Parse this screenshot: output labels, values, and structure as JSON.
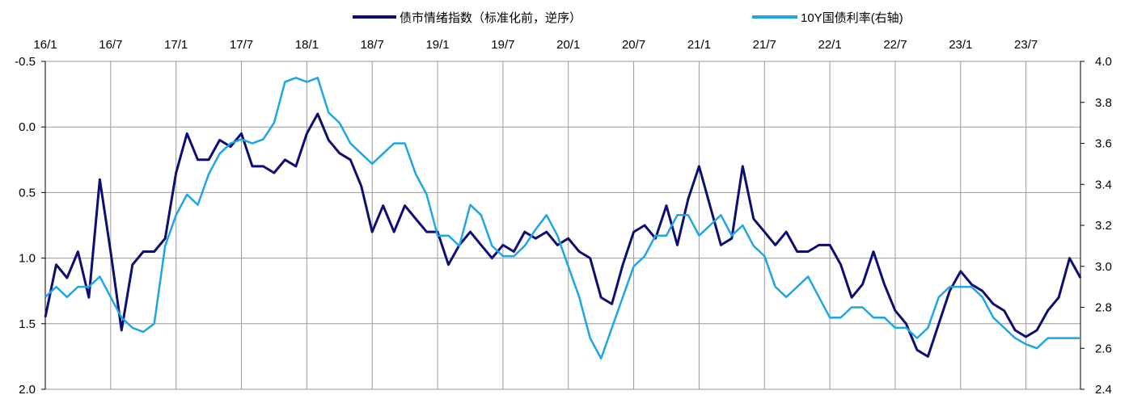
{
  "chart_data": {
    "type": "line",
    "title": "",
    "xlabel": "",
    "ylabel": "",
    "x_tick_labels": [
      "16/1",
      "16/7",
      "17/1",
      "17/7",
      "18/1",
      "18/7",
      "19/1",
      "19/7",
      "20/1",
      "20/7",
      "21/1",
      "21/7",
      "22/1",
      "22/7",
      "23/1",
      "23/7"
    ],
    "x_range": [
      "2016-01",
      "2023-12"
    ],
    "y_left": {
      "lim": [
        -0.5,
        2.0
      ],
      "reversed": true,
      "ticks": [
        "-0.5",
        "0.0",
        "0.5",
        "1.0",
        "1.5",
        "2.0"
      ]
    },
    "y_right": {
      "lim": [
        2.4,
        4.0
      ],
      "ticks": [
        "2.4",
        "2.6",
        "2.8",
        "3.0",
        "3.2",
        "3.4",
        "3.6",
        "3.8",
        "4.0"
      ]
    },
    "grid": true,
    "legend_position": "top",
    "series": [
      {
        "name": "债市情绪指数（标准化前，逆序）",
        "axis": "left",
        "color": "#0d0d73",
        "x": [
          "2016-01",
          "2016-02",
          "2016-03",
          "2016-04",
          "2016-05",
          "2016-06",
          "2016-07",
          "2016-08",
          "2016-09",
          "2016-10",
          "2016-11",
          "2016-12",
          "2017-01",
          "2017-02",
          "2017-03",
          "2017-04",
          "2017-05",
          "2017-06",
          "2017-07",
          "2017-08",
          "2017-09",
          "2017-10",
          "2017-11",
          "2017-12",
          "2018-01",
          "2018-02",
          "2018-03",
          "2018-04",
          "2018-05",
          "2018-06",
          "2018-07",
          "2018-08",
          "2018-09",
          "2018-10",
          "2018-11",
          "2018-12",
          "2019-01",
          "2019-02",
          "2019-03",
          "2019-04",
          "2019-05",
          "2019-06",
          "2019-07",
          "2019-08",
          "2019-09",
          "2019-10",
          "2019-11",
          "2019-12",
          "2020-01",
          "2020-02",
          "2020-03",
          "2020-04",
          "2020-05",
          "2020-06",
          "2020-07",
          "2020-08",
          "2020-09",
          "2020-10",
          "2020-11",
          "2020-12",
          "2021-01",
          "2021-02",
          "2021-03",
          "2021-04",
          "2021-05",
          "2021-06",
          "2021-07",
          "2021-08",
          "2021-09",
          "2021-10",
          "2021-11",
          "2021-12",
          "2022-01",
          "2022-02",
          "2022-03",
          "2022-04",
          "2022-05",
          "2022-06",
          "2022-07",
          "2022-08",
          "2022-09",
          "2022-10",
          "2022-11",
          "2022-12",
          "2023-01",
          "2023-02",
          "2023-03",
          "2023-04",
          "2023-05",
          "2023-06",
          "2023-07",
          "2023-08",
          "2023-09",
          "2023-10",
          "2023-11",
          "2023-12"
        ],
        "values": [
          1.45,
          1.05,
          1.15,
          0.95,
          1.3,
          0.4,
          0.95,
          1.55,
          1.05,
          0.95,
          0.95,
          0.85,
          0.35,
          0.05,
          0.25,
          0.25,
          0.1,
          0.15,
          0.05,
          0.3,
          0.3,
          0.35,
          0.25,
          0.3,
          0.05,
          -0.1,
          0.1,
          0.2,
          0.25,
          0.45,
          0.8,
          0.6,
          0.8,
          0.6,
          0.7,
          0.8,
          0.8,
          1.05,
          0.9,
          0.8,
          0.9,
          1.0,
          0.9,
          0.95,
          0.8,
          0.85,
          0.8,
          0.9,
          0.85,
          0.95,
          1.0,
          1.3,
          1.35,
          1.05,
          0.8,
          0.75,
          0.85,
          0.6,
          0.9,
          0.55,
          0.3,
          0.6,
          0.9,
          0.85,
          0.3,
          0.7,
          0.8,
          0.9,
          0.8,
          0.95,
          0.95,
          0.9,
          0.9,
          1.05,
          1.3,
          1.2,
          0.95,
          1.2,
          1.4,
          1.5,
          1.7,
          1.75,
          1.5,
          1.25,
          1.1,
          1.2,
          1.25,
          1.35,
          1.4,
          1.55,
          1.6,
          1.55,
          1.4,
          1.3,
          1.0,
          1.15
        ]
      },
      {
        "name": "10Y国债利率(右轴)",
        "axis": "right",
        "color": "#1ea5e6",
        "x": [
          "2016-01",
          "2016-02",
          "2016-03",
          "2016-04",
          "2016-05",
          "2016-06",
          "2016-07",
          "2016-08",
          "2016-09",
          "2016-10",
          "2016-11",
          "2016-12",
          "2017-01",
          "2017-02",
          "2017-03",
          "2017-04",
          "2017-05",
          "2017-06",
          "2017-07",
          "2017-08",
          "2017-09",
          "2017-10",
          "2017-11",
          "2017-12",
          "2018-01",
          "2018-02",
          "2018-03",
          "2018-04",
          "2018-05",
          "2018-06",
          "2018-07",
          "2018-08",
          "2018-09",
          "2018-10",
          "2018-11",
          "2018-12",
          "2019-01",
          "2019-02",
          "2019-03",
          "2019-04",
          "2019-05",
          "2019-06",
          "2019-07",
          "2019-08",
          "2019-09",
          "2019-10",
          "2019-11",
          "2019-12",
          "2020-01",
          "2020-02",
          "2020-03",
          "2020-04",
          "2020-05",
          "2020-06",
          "2020-07",
          "2020-08",
          "2020-09",
          "2020-10",
          "2020-11",
          "2020-12",
          "2021-01",
          "2021-02",
          "2021-03",
          "2021-04",
          "2021-05",
          "2021-06",
          "2021-07",
          "2021-08",
          "2021-09",
          "2021-10",
          "2021-11",
          "2021-12",
          "2022-01",
          "2022-02",
          "2022-03",
          "2022-04",
          "2022-05",
          "2022-06",
          "2022-07",
          "2022-08",
          "2022-09",
          "2022-10",
          "2022-11",
          "2022-12",
          "2023-01",
          "2023-02",
          "2023-03",
          "2023-04",
          "2023-05",
          "2023-06",
          "2023-07",
          "2023-08",
          "2023-09",
          "2023-10",
          "2023-11",
          "2023-12"
        ],
        "values": [
          2.85,
          2.9,
          2.85,
          2.9,
          2.9,
          2.95,
          2.85,
          2.75,
          2.7,
          2.68,
          2.72,
          3.1,
          3.25,
          3.35,
          3.3,
          3.45,
          3.55,
          3.6,
          3.62,
          3.6,
          3.62,
          3.7,
          3.9,
          3.92,
          3.9,
          3.92,
          3.75,
          3.7,
          3.6,
          3.55,
          3.5,
          3.55,
          3.6,
          3.6,
          3.45,
          3.35,
          3.15,
          3.15,
          3.1,
          3.3,
          3.25,
          3.1,
          3.05,
          3.05,
          3.1,
          3.18,
          3.25,
          3.15,
          3.0,
          2.85,
          2.65,
          2.55,
          2.7,
          2.85,
          3.0,
          3.05,
          3.15,
          3.15,
          3.25,
          3.25,
          3.15,
          3.2,
          3.25,
          3.15,
          3.2,
          3.1,
          3.05,
          2.9,
          2.85,
          2.9,
          2.95,
          2.85,
          2.75,
          2.75,
          2.8,
          2.8,
          2.75,
          2.75,
          2.7,
          2.7,
          2.65,
          2.7,
          2.85,
          2.9,
          2.9,
          2.9,
          2.85,
          2.75,
          2.7,
          2.65,
          2.62,
          2.6,
          2.65,
          2.65,
          2.65,
          2.65
        ]
      }
    ]
  }
}
